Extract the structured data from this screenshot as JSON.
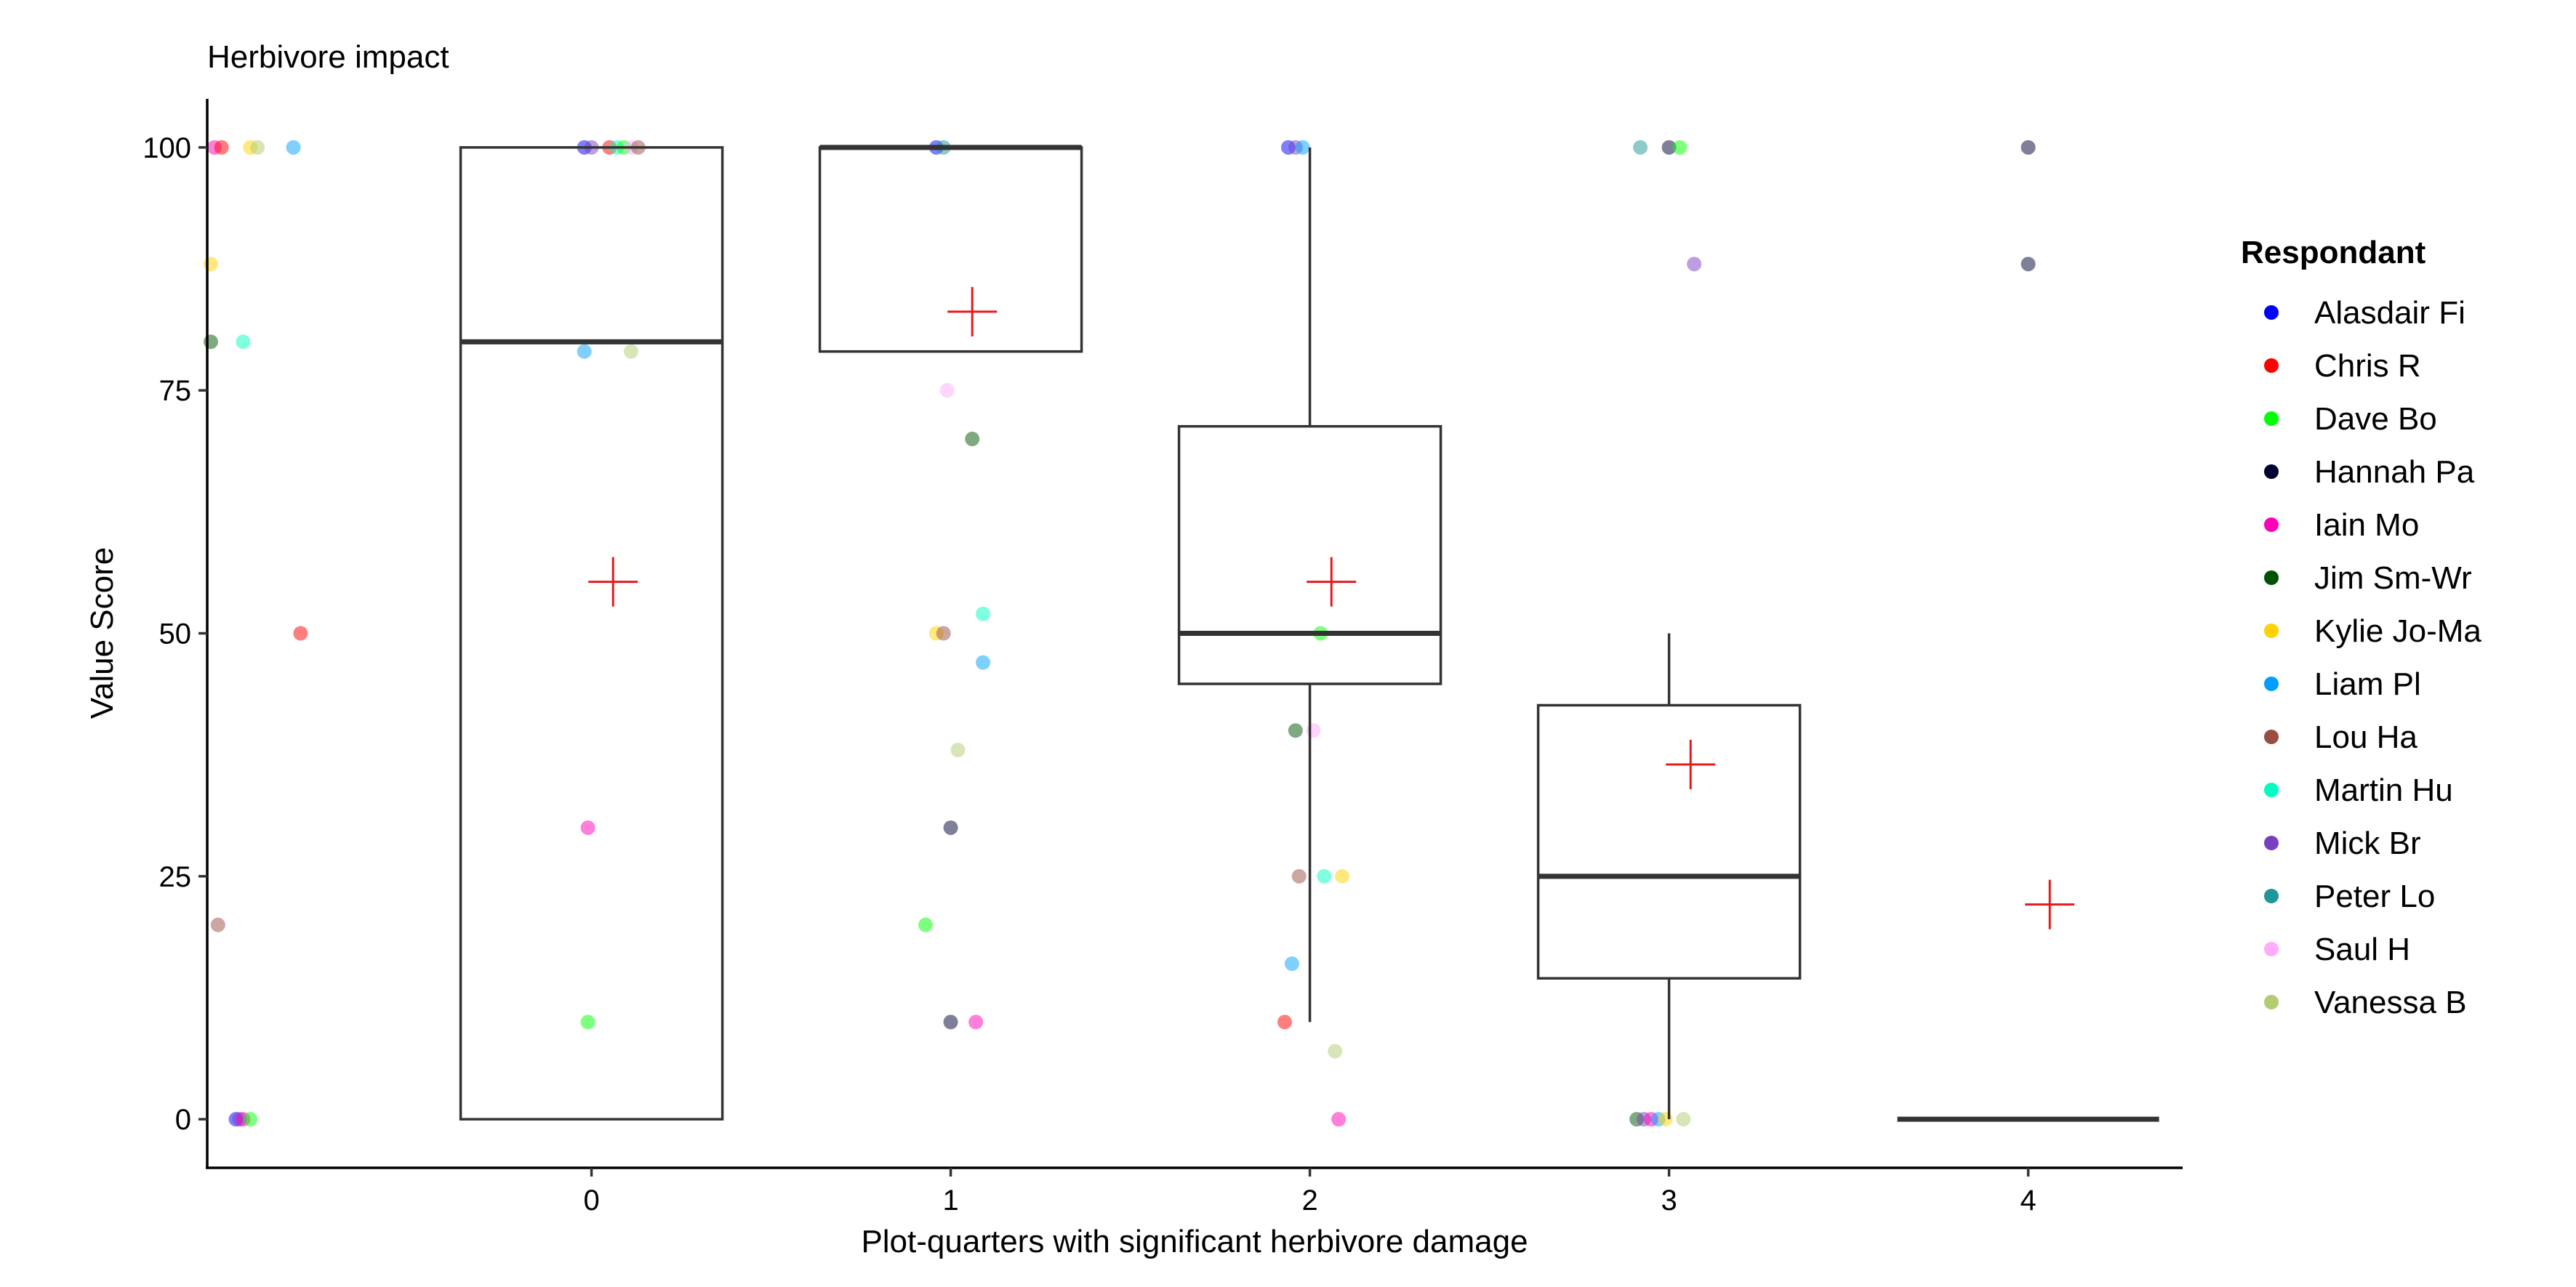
{
  "chart_data": {
    "type": "boxplot",
    "title": "Herbivore impact",
    "xlabel": "Plot-quarters with significant herbivore damage",
    "ylabel": "Value Score",
    "x_ticks": [
      "0",
      "1",
      "2",
      "3",
      "4"
    ],
    "x_range": [
      -1.07,
      4.43
    ],
    "y_ticks": [
      "0",
      "25",
      "50",
      "75",
      "100"
    ],
    "y_range": [
      -5,
      105
    ],
    "grid": false,
    "boxes": [
      {
        "x": 0,
        "q1": 0,
        "median": 80,
        "q3": 100,
        "whisker_low": 0,
        "whisker_high": 100,
        "mean": 55.3
      },
      {
        "x": 1,
        "q1": 79,
        "median": 100,
        "q3": 100,
        "whisker_low": 79,
        "whisker_high": 100,
        "mean": 83.1
      },
      {
        "x": 2,
        "q1": 44.8,
        "median": 50,
        "q3": 71.3,
        "whisker_low": 10,
        "whisker_high": 100,
        "mean": 55.3
      },
      {
        "x": 3,
        "q1": 14.5,
        "median": 25,
        "q3": 42.6,
        "whisker_low": 0,
        "whisker_high": 50,
        "mean": 36.5
      },
      {
        "x": 4,
        "q1": 0,
        "median": 0,
        "q3": 0,
        "whisker_low": 0,
        "whisker_high": 0,
        "mean": 22.1
      }
    ],
    "mean_marker_color": "#e41a1c",
    "legend": {
      "title": "Respondant",
      "position": "right",
      "entries": [
        {
          "name": "Alasdair Fi",
          "color": "#0000ff"
        },
        {
          "name": "Chris R",
          "color": "#ff0000"
        },
        {
          "name": "Dave Bo",
          "color": "#00ff00"
        },
        {
          "name": "Hannah Pa",
          "color": "#000033"
        },
        {
          "name": "Iain Mo",
          "color": "#ff00b6"
        },
        {
          "name": "Jim Sm-Wr",
          "color": "#005300"
        },
        {
          "name": "Kylie Jo-Ma",
          "color": "#ffd300"
        },
        {
          "name": "Liam Pl",
          "color": "#009fff"
        },
        {
          "name": "Lou Ha",
          "color": "#9a4d42"
        },
        {
          "name": "Martin Hu",
          "color": "#00ffbe"
        },
        {
          "name": "Mick Br",
          "color": "#783fc1"
        },
        {
          "name": "Peter Lo",
          "color": "#1f9698"
        },
        {
          "name": "Saul H",
          "color": "#ffacfd"
        },
        {
          "name": "Vanessa B",
          "color": "#b1cc71"
        }
      ]
    },
    "points": [
      {
        "x": -1.05,
        "y": 100,
        "color": "#ff00b6"
      },
      {
        "x": -1.03,
        "y": 100,
        "color": "#ff0000"
      },
      {
        "x": -0.95,
        "y": 100,
        "color": "#ffd300"
      },
      {
        "x": -0.93,
        "y": 100,
        "color": "#b1cc71"
      },
      {
        "x": -0.83,
        "y": 100,
        "color": "#009fff"
      },
      {
        "x": -1.06,
        "y": 88,
        "color": "#ffd300"
      },
      {
        "x": -1.06,
        "y": 80,
        "color": "#005300"
      },
      {
        "x": -0.97,
        "y": 80,
        "color": "#00ffbe"
      },
      {
        "x": -0.81,
        "y": 50,
        "color": "#ff0000"
      },
      {
        "x": -1.04,
        "y": 20,
        "color": "#9a4d42"
      },
      {
        "x": -0.99,
        "y": 0,
        "color": "#0000ff"
      },
      {
        "x": -0.98,
        "y": 0,
        "color": "#783fc1"
      },
      {
        "x": -0.97,
        "y": 0,
        "color": "#ff00b6"
      },
      {
        "x": -0.95,
        "y": 0,
        "color": "#00ff00"
      },
      {
        "x": -0.02,
        "y": 100,
        "color": "#0000ff"
      },
      {
        "x": 0.0,
        "y": 100,
        "color": "#783fc1"
      },
      {
        "x": 0.05,
        "y": 100,
        "color": "#ff0000"
      },
      {
        "x": 0.07,
        "y": 100,
        "color": "#00ffbe"
      },
      {
        "x": 0.09,
        "y": 100,
        "color": "#00ff00"
      },
      {
        "x": 0.11,
        "y": 100,
        "color": "#ffacfd"
      },
      {
        "x": 0.13,
        "y": 100,
        "color": "#9a4d42"
      },
      {
        "x": -0.02,
        "y": 79,
        "color": "#009fff"
      },
      {
        "x": 0.11,
        "y": 79,
        "color": "#b1cc71"
      },
      {
        "x": -0.01,
        "y": 30,
        "color": "#ff00b6"
      },
      {
        "x": -0.01,
        "y": 10,
        "color": "#00ff00"
      },
      {
        "x": 0.96,
        "y": 100,
        "color": "#0000ff"
      },
      {
        "x": 0.98,
        "y": 100,
        "color": "#1f9698"
      },
      {
        "x": 0.99,
        "y": 75,
        "color": "#ffacfd"
      },
      {
        "x": 1.06,
        "y": 70,
        "color": "#005300"
      },
      {
        "x": 0.96,
        "y": 50,
        "color": "#ffd300"
      },
      {
        "x": 0.98,
        "y": 50,
        "color": "#9a4d42"
      },
      {
        "x": 1.09,
        "y": 52,
        "color": "#00ffbe"
      },
      {
        "x": 1.09,
        "y": 47,
        "color": "#009fff"
      },
      {
        "x": 1.02,
        "y": 38,
        "color": "#b1cc71"
      },
      {
        "x": 1.0,
        "y": 30,
        "color": "#000033"
      },
      {
        "x": 0.93,
        "y": 20,
        "color": "#00ff00"
      },
      {
        "x": 1.0,
        "y": 10,
        "color": "#000033"
      },
      {
        "x": 1.07,
        "y": 10,
        "color": "#ff00b6"
      },
      {
        "x": 1.94,
        "y": 100,
        "color": "#0000ff"
      },
      {
        "x": 1.96,
        "y": 100,
        "color": "#783fc1"
      },
      {
        "x": 1.98,
        "y": 100,
        "color": "#009fff"
      },
      {
        "x": 2.03,
        "y": 50,
        "color": "#00ff00"
      },
      {
        "x": 1.96,
        "y": 40,
        "color": "#005300"
      },
      {
        "x": 2.01,
        "y": 40,
        "color": "#ffacfd"
      },
      {
        "x": 1.97,
        "y": 25,
        "color": "#9a4d42"
      },
      {
        "x": 2.04,
        "y": 25,
        "color": "#00ffbe"
      },
      {
        "x": 2.09,
        "y": 25,
        "color": "#ffd300"
      },
      {
        "x": 1.95,
        "y": 16,
        "color": "#009fff"
      },
      {
        "x": 1.93,
        "y": 10,
        "color": "#ff0000"
      },
      {
        "x": 2.07,
        "y": 7,
        "color": "#b1cc71"
      },
      {
        "x": 2.08,
        "y": 0,
        "color": "#ff00b6"
      },
      {
        "x": 2.92,
        "y": 100,
        "color": "#1f9698"
      },
      {
        "x": 3.0,
        "y": 100,
        "color": "#000033"
      },
      {
        "x": 3.03,
        "y": 100,
        "color": "#00ff00"
      },
      {
        "x": 3.07,
        "y": 88,
        "color": "#783fc1"
      },
      {
        "x": 2.91,
        "y": 0,
        "color": "#005300"
      },
      {
        "x": 2.93,
        "y": 0,
        "color": "#783fc1"
      },
      {
        "x": 2.95,
        "y": 0,
        "color": "#ff00b6"
      },
      {
        "x": 2.97,
        "y": 0,
        "color": "#009fff"
      },
      {
        "x": 2.99,
        "y": 0,
        "color": "#ffd300"
      },
      {
        "x": 3.04,
        "y": 0,
        "color": "#b1cc71"
      },
      {
        "x": 4.0,
        "y": 100,
        "color": "#000033"
      },
      {
        "x": 4.0,
        "y": 88,
        "color": "#000033"
      }
    ]
  }
}
